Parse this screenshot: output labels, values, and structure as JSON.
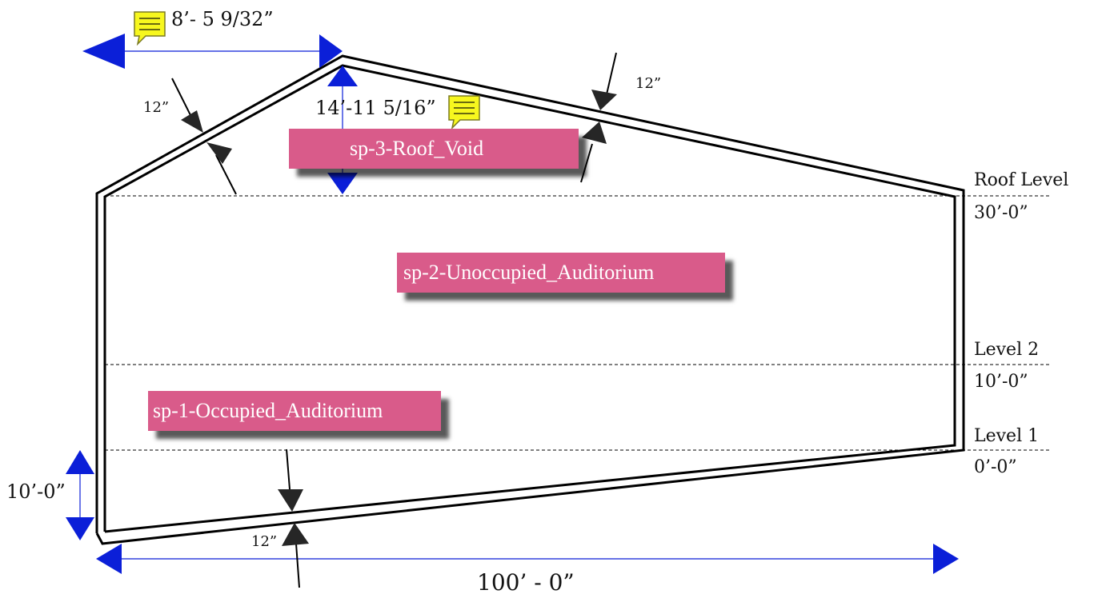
{
  "spaces": {
    "roof_void": "sp-3-Roof_Void",
    "unoccupied": "sp-2-Unoccupied_Auditorium",
    "occupied": "sp-1-Occupied_Auditorium"
  },
  "levels": {
    "roof": {
      "name": "Roof Level",
      "elevation": "30’-0”"
    },
    "level2": {
      "name": "Level 2",
      "elevation": "10’-0”"
    },
    "level1": {
      "name": "Level 1",
      "elevation": "0’-0”"
    }
  },
  "dimensions": {
    "ridge_offset": "8’- 5 9/32”",
    "ridge_height": "14’-11 5/16”",
    "floor_drop": "10’-0”",
    "overall_width": "100’ - 0”",
    "thickness_left_roof": "12”",
    "thickness_right_roof": "12”",
    "thickness_floor": "12”"
  },
  "colors": {
    "dimension": "#0b1fd8",
    "space_tag": "#d95b8a",
    "note": "#f7f71e"
  },
  "icons": [
    "note-icon",
    "note-icon"
  ]
}
